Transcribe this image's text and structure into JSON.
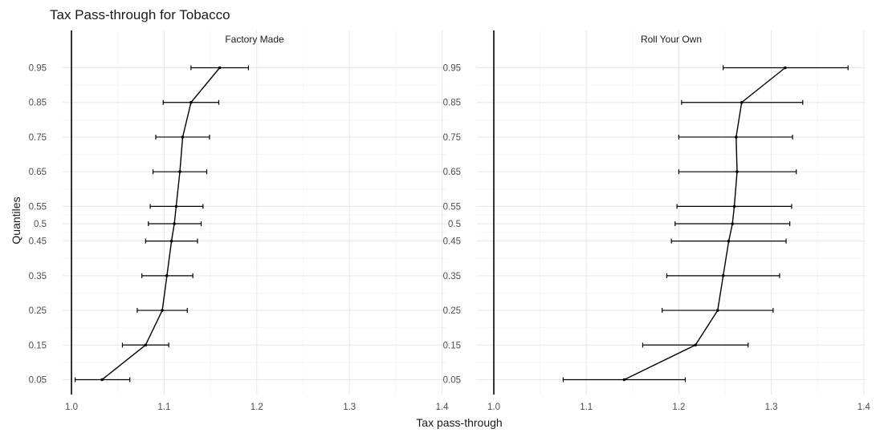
{
  "chart_data": {
    "type": "line",
    "title": "Tax Pass-through for Tobacco",
    "xlabel": "Tax pass-through",
    "ylabel": "Quantiles",
    "xlim": [
      1.0,
      1.4
    ],
    "x_ticks": [
      "1.0",
      "1.1",
      "1.2",
      "1.3",
      "1.4"
    ],
    "y_ticks": [
      "0.05",
      "0.15",
      "0.25",
      "0.35",
      "0.45",
      "0.5",
      "0.55",
      "0.65",
      "0.75",
      "0.85",
      "0.95"
    ],
    "grid": true,
    "panels": [
      {
        "name": "Factory Made",
        "points": [
          {
            "q": 0.05,
            "est": 1.033,
            "lo": 1.004,
            "hi": 1.063
          },
          {
            "q": 0.15,
            "est": 1.08,
            "lo": 1.055,
            "hi": 1.105
          },
          {
            "q": 0.25,
            "est": 1.098,
            "lo": 1.071,
            "hi": 1.125
          },
          {
            "q": 0.35,
            "est": 1.103,
            "lo": 1.076,
            "hi": 1.131
          },
          {
            "q": 0.45,
            "est": 1.108,
            "lo": 1.08,
            "hi": 1.136
          },
          {
            "q": 0.5,
            "est": 1.111,
            "lo": 1.083,
            "hi": 1.14
          },
          {
            "q": 0.55,
            "est": 1.113,
            "lo": 1.085,
            "hi": 1.142
          },
          {
            "q": 0.65,
            "est": 1.117,
            "lo": 1.088,
            "hi": 1.146
          },
          {
            "q": 0.75,
            "est": 1.12,
            "lo": 1.091,
            "hi": 1.149
          },
          {
            "q": 0.85,
            "est": 1.129,
            "lo": 1.099,
            "hi": 1.159
          },
          {
            "q": 0.95,
            "est": 1.16,
            "lo": 1.129,
            "hi": 1.191
          }
        ]
      },
      {
        "name": "Roll Your Own",
        "points": [
          {
            "q": 0.05,
            "est": 1.141,
            "lo": 1.075,
            "hi": 1.207
          },
          {
            "q": 0.15,
            "est": 1.218,
            "lo": 1.161,
            "hi": 1.275
          },
          {
            "q": 0.25,
            "est": 1.242,
            "lo": 1.182,
            "hi": 1.302
          },
          {
            "q": 0.35,
            "est": 1.248,
            "lo": 1.187,
            "hi": 1.309
          },
          {
            "q": 0.45,
            "est": 1.254,
            "lo": 1.192,
            "hi": 1.316
          },
          {
            "q": 0.5,
            "est": 1.258,
            "lo": 1.196,
            "hi": 1.32
          },
          {
            "q": 0.55,
            "est": 1.26,
            "lo": 1.198,
            "hi": 1.322
          },
          {
            "q": 0.65,
            "est": 1.263,
            "lo": 1.2,
            "hi": 1.327
          },
          {
            "q": 0.75,
            "est": 1.262,
            "lo": 1.2,
            "hi": 1.323
          },
          {
            "q": 0.85,
            "est": 1.268,
            "lo": 1.203,
            "hi": 1.334
          },
          {
            "q": 0.95,
            "est": 1.315,
            "lo": 1.248,
            "hi": 1.383
          }
        ]
      }
    ]
  }
}
